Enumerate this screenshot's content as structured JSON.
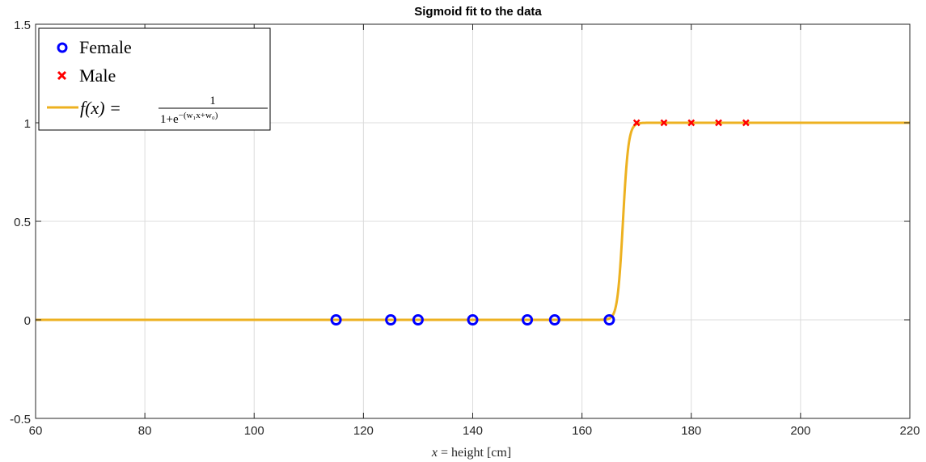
{
  "chart_data": {
    "type": "scatter",
    "title": "Sigmoid fit to the data",
    "xlabel": "x = height [cm]",
    "xlabel_parts": {
      "var": "x",
      "rest": " = height [cm]"
    },
    "ylabel": "",
    "xlim": [
      60,
      220
    ],
    "ylim": [
      -0.5,
      1.5
    ],
    "xticks": [
      60,
      80,
      100,
      120,
      140,
      160,
      180,
      200,
      220
    ],
    "yticks": [
      -0.5,
      0,
      0.5,
      1,
      1.5
    ],
    "ytick_labels": [
      "-0.5",
      "0",
      "0.5",
      "1",
      "1.5"
    ],
    "grid": true,
    "legend_position": "top-left",
    "series": [
      {
        "name": "Female",
        "marker": "circle",
        "color": "#0000ff",
        "x": [
          115,
          125,
          130,
          140,
          150,
          155,
          165
        ],
        "y": [
          0,
          0,
          0,
          0,
          0,
          0,
          0
        ]
      },
      {
        "name": "Male",
        "marker": "x",
        "color": "#ff0000",
        "x": [
          170,
          175,
          180,
          185,
          190
        ],
        "y": [
          1,
          1,
          1,
          1,
          1
        ]
      },
      {
        "name": "f(x) = 1/(1+e^-(w1x+w0))",
        "type": "line",
        "color": "#edb120",
        "w1": 2.0,
        "w0": -335.0
      }
    ],
    "legend_formula": {
      "lhs": "f(x) =",
      "numerator": "1",
      "denominator_base": "1+e",
      "exponent": "−(w₁x+w₀)"
    }
  }
}
